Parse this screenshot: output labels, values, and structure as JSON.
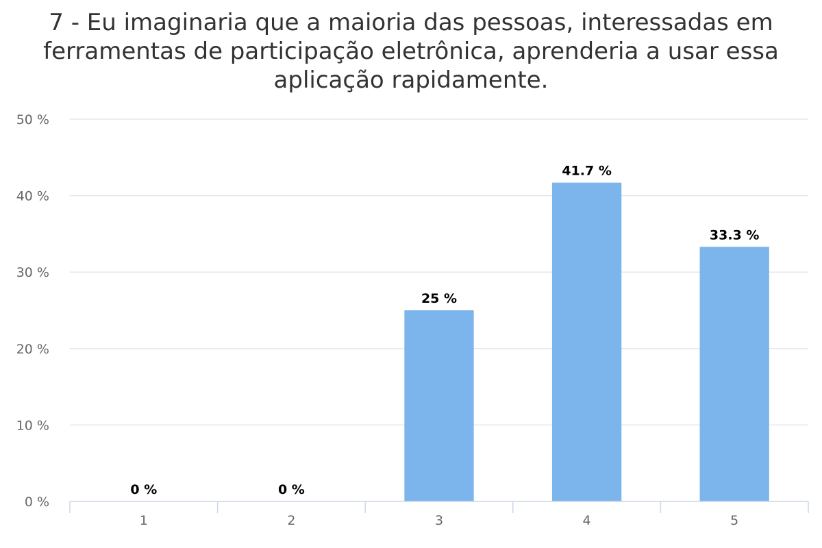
{
  "chart_data": {
    "type": "bar",
    "title": "7 - Eu imaginaria que a maioria das pessoas, interessadas em ferramentas de participação eletrônica, aprenderia a usar essa aplicação rapidamente.",
    "xlabel": "",
    "ylabel": "",
    "categories": [
      "1",
      "2",
      "3",
      "4",
      "5"
    ],
    "values": [
      0,
      0,
      25,
      41.7,
      33.3
    ],
    "data_labels": [
      "0 %",
      "0 %",
      "25 %",
      "41.7 %",
      "33.3 %"
    ],
    "ylim": [
      0,
      50
    ],
    "y_ticks": [
      0,
      10,
      20,
      30,
      40,
      50
    ],
    "y_tick_labels": [
      "0 %",
      "10 %",
      "20 %",
      "30 %",
      "40 %",
      "50 %"
    ],
    "grid": true,
    "legend": "none",
    "bar_color": "#7cb5ec",
    "grid_color": "#e6e6e6",
    "axis_color": "#ccd6eb"
  }
}
